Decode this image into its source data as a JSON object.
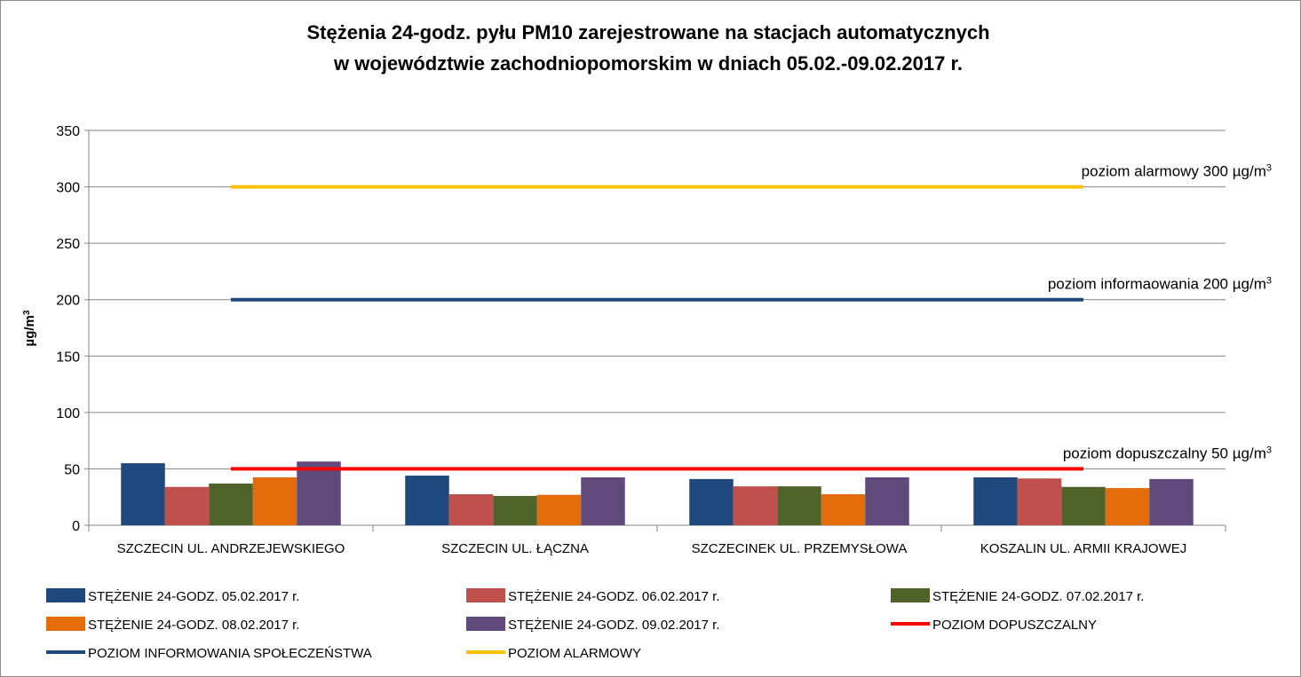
{
  "chart_data": {
    "type": "bar",
    "title": [
      "Stężenia 24-godz. pyłu PM10 zarejestrowane na stacjach automatycznych",
      "w województwie zachodniopomorskim w dniach 05.02.-09.02.2017 r."
    ],
    "xlabel": "",
    "ylabel": "µg/m3",
    "ylim": [
      0,
      350
    ],
    "yticks": [
      0,
      50,
      100,
      150,
      200,
      250,
      300,
      350
    ],
    "grid": true,
    "legend_position": "bottom",
    "categories": [
      "SZCZECIN UL. ANDRZEJEWSKIEGO",
      "SZCZECIN UL. ŁĄCZNA",
      "SZCZECINEK UL. PRZEMYSŁOWA",
      "KOSZALIN UL. ARMII KRAJOWEJ"
    ],
    "series": [
      {
        "name": "STĘŻENIE 24-GODZ. 05.02.2017 r.",
        "color": "#1f497d",
        "values": [
          55,
          44,
          41,
          42.5
        ]
      },
      {
        "name": "STĘŻENIE 24-GODZ. 06.02.2017 r.",
        "color": "#c0504d",
        "values": [
          34,
          27.5,
          34.5,
          41.5
        ]
      },
      {
        "name": "STĘŻENIE 24-GODZ. 07.02.2017 r.",
        "color": "#4f6228",
        "values": [
          37,
          26,
          34.5,
          34
        ]
      },
      {
        "name": "STĘŻENIE 24-GODZ. 08.02.2017 r.",
        "color": "#e46c0a",
        "values": [
          42.5,
          27,
          27.5,
          33
        ]
      },
      {
        "name": "STĘŻENIE 24-GODZ. 09.02.2017 r.",
        "color": "#604a7b",
        "values": [
          56.5,
          42.5,
          42.5,
          41
        ]
      }
    ],
    "lines": [
      {
        "name": "POZIOM DOPUSZCZALNY",
        "color": "#ff0000",
        "value": 50,
        "annotation": "poziom dopuszczalny  50 µg/m",
        "sup": "3"
      },
      {
        "name": "POZIOM INFORMOWANIA SPOŁECZEŃSTWA",
        "color": "#1f497d",
        "value": 200,
        "annotation": "poziom informaowania  200 µg/m",
        "sup": "3"
      },
      {
        "name": "POZIOM ALARMOWY",
        "color": "#ffc000",
        "value": 300,
        "annotation": "poziom alarmowy 300 µg/m",
        "sup": "3"
      }
    ]
  }
}
